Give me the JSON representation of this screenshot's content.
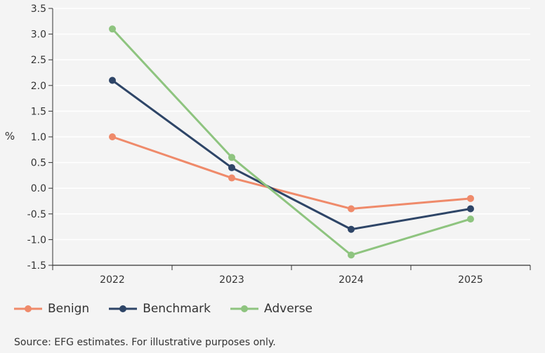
{
  "chart_data": {
    "type": "line",
    "title": "",
    "xlabel": "",
    "ylabel": "%",
    "categories": [
      "2022",
      "2023",
      "2024",
      "2025"
    ],
    "ylim": [
      -1.5,
      3.5
    ],
    "yticks": [
      "3.5",
      "3.0",
      "2.5",
      "2.0",
      "1.5",
      "1.0",
      "0.5",
      "0.0",
      "-0.5",
      "-1.0",
      "-1.5"
    ],
    "ytick_values": [
      3.5,
      3.0,
      2.5,
      2.0,
      1.5,
      1.0,
      0.5,
      0.0,
      -0.5,
      -1.0,
      -1.5
    ],
    "grid": "horizontal",
    "legend_position": "bottom-left",
    "series": [
      {
        "name": "Benign",
        "color": "#ef8a6a",
        "values": [
          1.0,
          0.2,
          -0.4,
          -0.2
        ]
      },
      {
        "name": "Benchmark",
        "color": "#2e4567",
        "values": [
          2.1,
          0.4,
          -0.8,
          -0.4
        ]
      },
      {
        "name": "Adverse",
        "color": "#8ec47f",
        "values": [
          3.1,
          0.6,
          -1.3,
          -0.6
        ]
      }
    ]
  },
  "source_note": "Source: EFG estimates. For illustrative purposes only."
}
